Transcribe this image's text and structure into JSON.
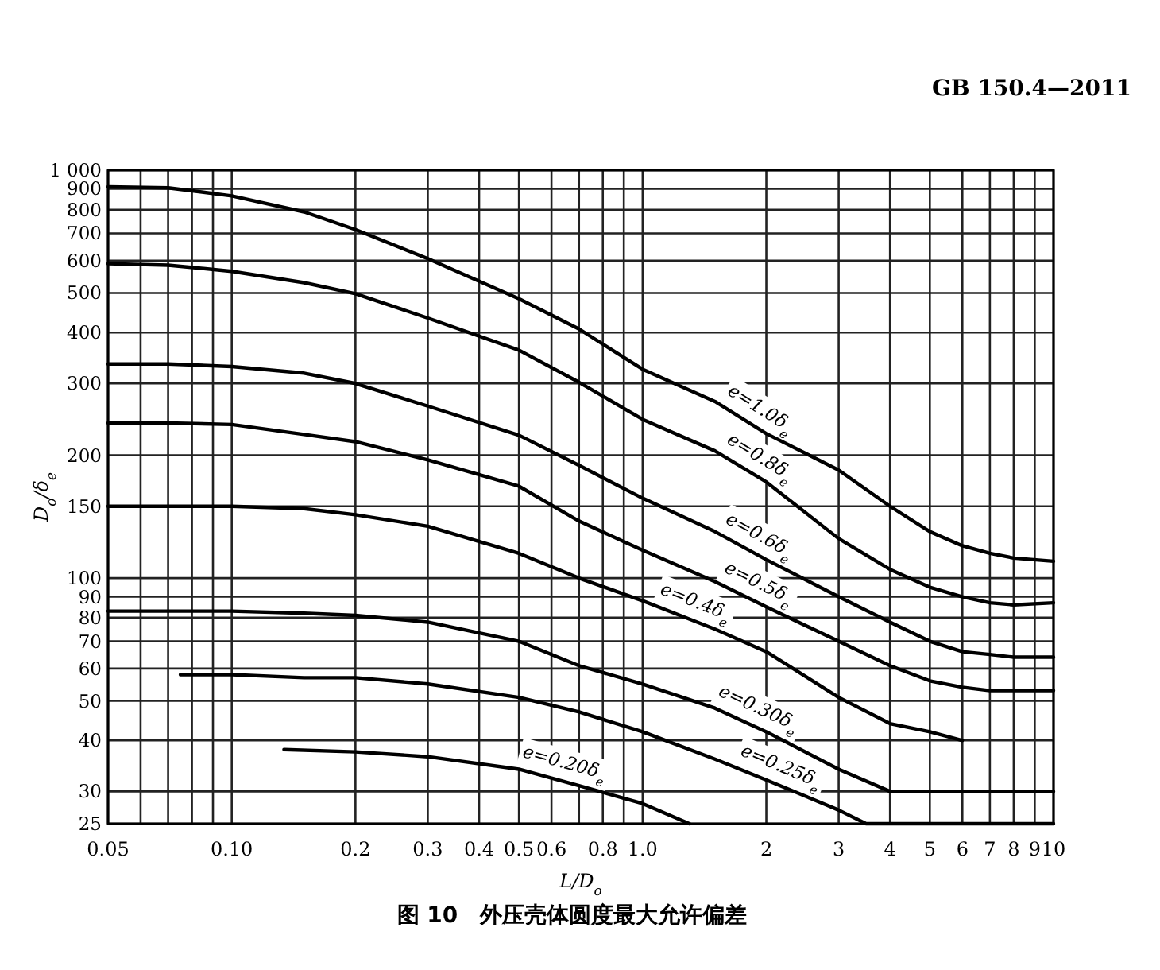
{
  "chart_data": {
    "type": "line",
    "title": "图 10　外压壳体圆度最大允许偏差",
    "xlabel": "L/D$_{o}$",
    "ylabel": "D$_{o}$/δ$_{e}$",
    "annotations": [
      "GB 150.4—2011"
    ],
    "log": "xy",
    "grid": true,
    "line_style": "solid",
    "xlim": [
      0.05,
      10
    ],
    "ylim": [
      25,
      1000
    ],
    "xticks": [
      {
        "value": 0.05,
        "label": "0.05"
      },
      {
        "value": 0.06,
        "label": null
      },
      {
        "value": 0.07,
        "label": null
      },
      {
        "value": 0.08,
        "label": null
      },
      {
        "value": 0.09,
        "label": null
      },
      {
        "value": 0.1,
        "label": "0.10"
      },
      0.2,
      0.3,
      0.4,
      0.5,
      0.6,
      {
        "value": 0.7,
        "label": null
      },
      0.8,
      {
        "value": 0.9,
        "label": null
      },
      {
        "value": 1,
        "label": "1.0"
      },
      2,
      3,
      4,
      5,
      6,
      7,
      8,
      9,
      10
    ],
    "yticks": [
      25,
      30,
      40,
      50,
      60,
      70,
      80,
      90,
      100,
      150,
      200,
      300,
      400,
      500,
      600,
      700,
      800,
      900,
      {
        "value": 1000,
        "label": "1 000"
      }
    ],
    "series": [
      {
        "name": "e=1.0δ$_{e}$",
        "color": "#000000",
        "x": [
          0.05,
          0.07,
          0.1,
          0.15,
          0.2,
          0.3,
          0.5,
          0.7,
          1,
          1.5,
          2,
          3,
          4,
          5,
          6,
          7,
          8,
          10
        ],
        "values": [
          910,
          905,
          865,
          790,
          715,
          607,
          484,
          408,
          325,
          271,
          226,
          184,
          150,
          130,
          120,
          115,
          112,
          110
        ]
      },
      {
        "name": "e=0.8δ$_{e}$",
        "color": "#000000",
        "x": [
          0.05,
          0.07,
          0.1,
          0.15,
          0.2,
          0.3,
          0.5,
          0.7,
          1,
          1.5,
          2,
          3,
          4,
          5,
          6,
          7,
          8,
          10
        ],
        "values": [
          590,
          585,
          565,
          530,
          498,
          434,
          362,
          302,
          245,
          205,
          172,
          125,
          105,
          95,
          90,
          87,
          86,
          87
        ]
      },
      {
        "name": "e=0.6δ$_{e}$",
        "color": "#000000",
        "x": [
          0.05,
          0.07,
          0.1,
          0.15,
          0.2,
          0.3,
          0.5,
          0.7,
          1,
          1.5,
          2,
          3,
          4,
          5,
          6,
          7,
          8,
          10
        ],
        "values": [
          335,
          335,
          330,
          318,
          300,
          264,
          224,
          189,
          157,
          130,
          111,
          90,
          78,
          70,
          66,
          65,
          64,
          64
        ]
      },
      {
        "name": "e=0.5δ$_{e}$",
        "color": "#000000",
        "x": [
          0.05,
          0.07,
          0.1,
          0.15,
          0.2,
          0.3,
          0.5,
          0.7,
          1,
          1.5,
          2,
          3,
          4,
          5,
          6,
          7,
          8,
          10
        ],
        "values": [
          240,
          240,
          238,
          225,
          216,
          195,
          168,
          138,
          117,
          98,
          85,
          70,
          61,
          56,
          54,
          53,
          53,
          53
        ]
      },
      {
        "name": "e=0.4δ$_{e}$",
        "color": "#000000",
        "x": [
          0.05,
          0.07,
          0.1,
          0.15,
          0.2,
          0.3,
          0.5,
          0.7,
          1,
          1.5,
          2,
          3,
          4,
          5,
          6
        ],
        "values": [
          150,
          150,
          150,
          148,
          143,
          134,
          115,
          100,
          88,
          75,
          66,
          51,
          44,
          42,
          40
        ]
      },
      {
        "name": "e=0.30δ$_{e}$",
        "color": "#000000",
        "x": [
          0.05,
          0.07,
          0.1,
          0.15,
          0.2,
          0.3,
          0.5,
          0.7,
          1,
          1.5,
          2,
          3,
          4,
          5,
          6,
          7,
          8,
          10
        ],
        "values": [
          83,
          83,
          83,
          82,
          81,
          78,
          70,
          61,
          55,
          48,
          42,
          34,
          30,
          30,
          30,
          30,
          30,
          30
        ]
      },
      {
        "name": "e=0.25δ$_{e}$",
        "color": "#000000",
        "x": [
          0.075,
          0.1,
          0.15,
          0.2,
          0.3,
          0.5,
          0.7,
          1,
          1.5,
          2,
          3,
          3.5,
          4,
          5,
          6,
          7,
          8,
          10
        ],
        "values": [
          58,
          58,
          57,
          57,
          55,
          51,
          47,
          42,
          36,
          32,
          27,
          25,
          25,
          25,
          25,
          25,
          25,
          25
        ]
      },
      {
        "name": "e=0.20δ$_{e}$",
        "color": "#000000",
        "x": [
          0.134,
          0.2,
          0.3,
          0.5,
          0.7,
          1,
          1.3
        ],
        "values": [
          38,
          37.5,
          36.5,
          34,
          31,
          28,
          25
        ]
      }
    ]
  }
}
